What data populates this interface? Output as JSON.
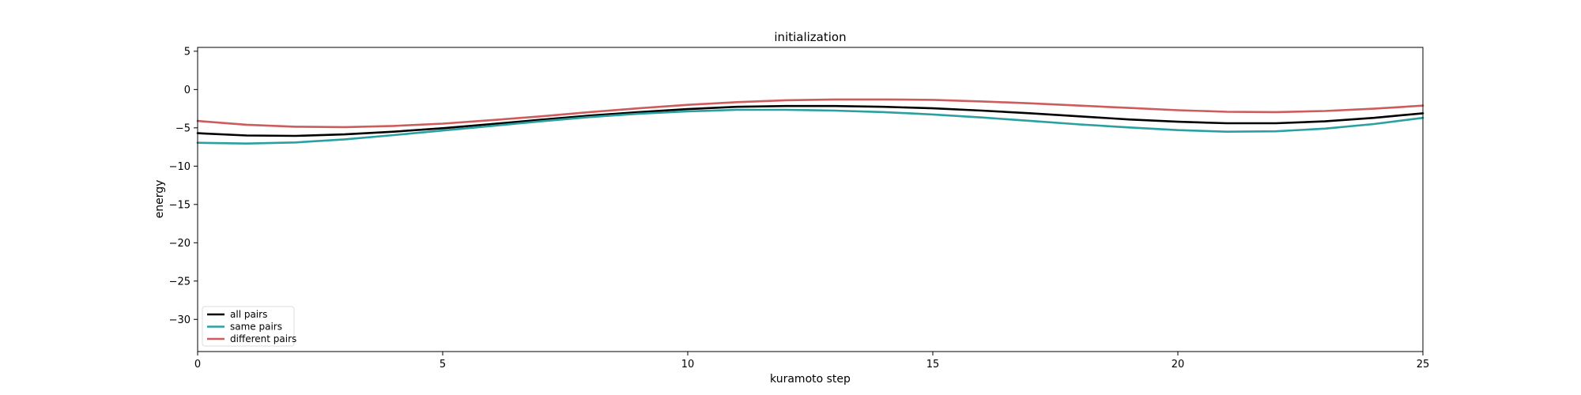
{
  "chart_data": {
    "type": "line",
    "title": "initialization",
    "xlabel": "kuramoto step",
    "ylabel": "energy",
    "xlim": [
      0,
      25
    ],
    "ylim": [
      -34.2,
      5.5
    ],
    "xticks": [
      0,
      5,
      10,
      15,
      20,
      25
    ],
    "xtick_labels": [
      "0",
      "5",
      "10",
      "15",
      "20",
      "25"
    ],
    "yticks": [
      5,
      0,
      -5,
      -10,
      -15,
      -20,
      -25,
      -30
    ],
    "ytick_labels": [
      "5",
      "0",
      "−5",
      "−10",
      "−15",
      "−20",
      "−25",
      "−30"
    ],
    "grid": false,
    "legend_position": "lower-left",
    "x": [
      0,
      1,
      2,
      3,
      4,
      5,
      6,
      7,
      8,
      9,
      10,
      11,
      12,
      13,
      14,
      15,
      16,
      17,
      18,
      19,
      20,
      21,
      22,
      23,
      24,
      25
    ],
    "series": [
      {
        "name": "all pairs",
        "color": "#000000",
        "values": [
          -5.7,
          -6.0,
          -6.05,
          -5.85,
          -5.5,
          -5.05,
          -4.5,
          -3.95,
          -3.4,
          -2.95,
          -2.55,
          -2.25,
          -2.15,
          -2.15,
          -2.25,
          -2.45,
          -2.75,
          -3.1,
          -3.5,
          -3.9,
          -4.2,
          -4.4,
          -4.4,
          -4.15,
          -3.7,
          -3.1
        ]
      },
      {
        "name": "same pairs",
        "color": "#2aa0a0",
        "values": [
          -6.95,
          -7.05,
          -6.9,
          -6.5,
          -5.95,
          -5.35,
          -4.75,
          -4.15,
          -3.6,
          -3.15,
          -2.85,
          -2.65,
          -2.65,
          -2.75,
          -2.95,
          -3.25,
          -3.65,
          -4.1,
          -4.55,
          -4.95,
          -5.3,
          -5.5,
          -5.45,
          -5.1,
          -4.5,
          -3.7
        ]
      },
      {
        "name": "different pairs",
        "color": "#cd5c5c",
        "values": [
          -4.1,
          -4.6,
          -4.85,
          -4.9,
          -4.75,
          -4.45,
          -4.0,
          -3.5,
          -2.95,
          -2.45,
          -2.0,
          -1.65,
          -1.4,
          -1.3,
          -1.3,
          -1.35,
          -1.55,
          -1.8,
          -2.1,
          -2.4,
          -2.7,
          -2.9,
          -2.95,
          -2.8,
          -2.5,
          -2.1
        ]
      }
    ]
  }
}
